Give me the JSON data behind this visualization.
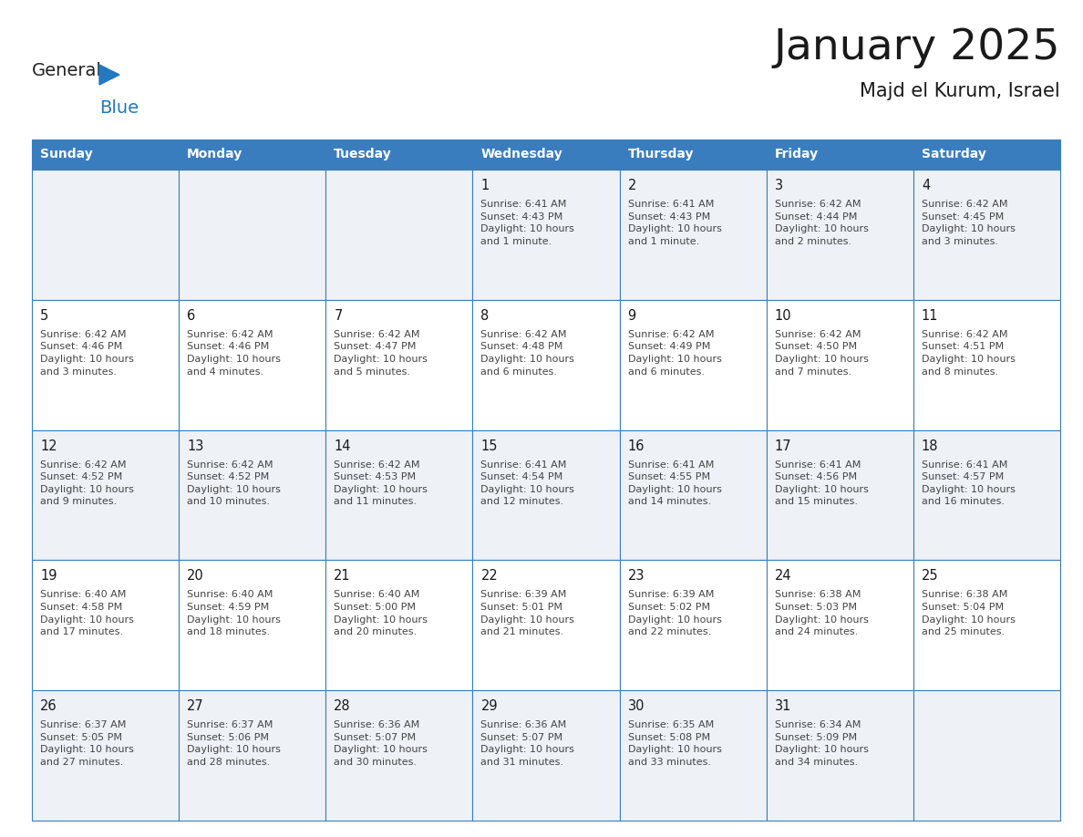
{
  "title": "January 2025",
  "subtitle": "Majd el Kurum, Israel",
  "days_of_week": [
    "Sunday",
    "Monday",
    "Tuesday",
    "Wednesday",
    "Thursday",
    "Friday",
    "Saturday"
  ],
  "header_bg": "#3a7dbf",
  "header_text": "#ffffff",
  "cell_bg_odd": "#eef2f7",
  "cell_bg_even": "#ffffff",
  "border_color": "#3a7dbf",
  "title_color": "#1a1a1a",
  "subtitle_color": "#1a1a1a",
  "day_number_color": "#1a1a1a",
  "cell_text_color": "#444444",
  "logo_general_color": "#222222",
  "logo_blue_color": "#2279c0",
  "calendar_data": [
    [
      {
        "day": "",
        "info": ""
      },
      {
        "day": "",
        "info": ""
      },
      {
        "day": "",
        "info": ""
      },
      {
        "day": "1",
        "info": "Sunrise: 6:41 AM\nSunset: 4:43 PM\nDaylight: 10 hours\nand 1 minute."
      },
      {
        "day": "2",
        "info": "Sunrise: 6:41 AM\nSunset: 4:43 PM\nDaylight: 10 hours\nand 1 minute."
      },
      {
        "day": "3",
        "info": "Sunrise: 6:42 AM\nSunset: 4:44 PM\nDaylight: 10 hours\nand 2 minutes."
      },
      {
        "day": "4",
        "info": "Sunrise: 6:42 AM\nSunset: 4:45 PM\nDaylight: 10 hours\nand 3 minutes."
      }
    ],
    [
      {
        "day": "5",
        "info": "Sunrise: 6:42 AM\nSunset: 4:46 PM\nDaylight: 10 hours\nand 3 minutes."
      },
      {
        "day": "6",
        "info": "Sunrise: 6:42 AM\nSunset: 4:46 PM\nDaylight: 10 hours\nand 4 minutes."
      },
      {
        "day": "7",
        "info": "Sunrise: 6:42 AM\nSunset: 4:47 PM\nDaylight: 10 hours\nand 5 minutes."
      },
      {
        "day": "8",
        "info": "Sunrise: 6:42 AM\nSunset: 4:48 PM\nDaylight: 10 hours\nand 6 minutes."
      },
      {
        "day": "9",
        "info": "Sunrise: 6:42 AM\nSunset: 4:49 PM\nDaylight: 10 hours\nand 6 minutes."
      },
      {
        "day": "10",
        "info": "Sunrise: 6:42 AM\nSunset: 4:50 PM\nDaylight: 10 hours\nand 7 minutes."
      },
      {
        "day": "11",
        "info": "Sunrise: 6:42 AM\nSunset: 4:51 PM\nDaylight: 10 hours\nand 8 minutes."
      }
    ],
    [
      {
        "day": "12",
        "info": "Sunrise: 6:42 AM\nSunset: 4:52 PM\nDaylight: 10 hours\nand 9 minutes."
      },
      {
        "day": "13",
        "info": "Sunrise: 6:42 AM\nSunset: 4:52 PM\nDaylight: 10 hours\nand 10 minutes."
      },
      {
        "day": "14",
        "info": "Sunrise: 6:42 AM\nSunset: 4:53 PM\nDaylight: 10 hours\nand 11 minutes."
      },
      {
        "day": "15",
        "info": "Sunrise: 6:41 AM\nSunset: 4:54 PM\nDaylight: 10 hours\nand 12 minutes."
      },
      {
        "day": "16",
        "info": "Sunrise: 6:41 AM\nSunset: 4:55 PM\nDaylight: 10 hours\nand 14 minutes."
      },
      {
        "day": "17",
        "info": "Sunrise: 6:41 AM\nSunset: 4:56 PM\nDaylight: 10 hours\nand 15 minutes."
      },
      {
        "day": "18",
        "info": "Sunrise: 6:41 AM\nSunset: 4:57 PM\nDaylight: 10 hours\nand 16 minutes."
      }
    ],
    [
      {
        "day": "19",
        "info": "Sunrise: 6:40 AM\nSunset: 4:58 PM\nDaylight: 10 hours\nand 17 minutes."
      },
      {
        "day": "20",
        "info": "Sunrise: 6:40 AM\nSunset: 4:59 PM\nDaylight: 10 hours\nand 18 minutes."
      },
      {
        "day": "21",
        "info": "Sunrise: 6:40 AM\nSunset: 5:00 PM\nDaylight: 10 hours\nand 20 minutes."
      },
      {
        "day": "22",
        "info": "Sunrise: 6:39 AM\nSunset: 5:01 PM\nDaylight: 10 hours\nand 21 minutes."
      },
      {
        "day": "23",
        "info": "Sunrise: 6:39 AM\nSunset: 5:02 PM\nDaylight: 10 hours\nand 22 minutes."
      },
      {
        "day": "24",
        "info": "Sunrise: 6:38 AM\nSunset: 5:03 PM\nDaylight: 10 hours\nand 24 minutes."
      },
      {
        "day": "25",
        "info": "Sunrise: 6:38 AM\nSunset: 5:04 PM\nDaylight: 10 hours\nand 25 minutes."
      }
    ],
    [
      {
        "day": "26",
        "info": "Sunrise: 6:37 AM\nSunset: 5:05 PM\nDaylight: 10 hours\nand 27 minutes."
      },
      {
        "day": "27",
        "info": "Sunrise: 6:37 AM\nSunset: 5:06 PM\nDaylight: 10 hours\nand 28 minutes."
      },
      {
        "day": "28",
        "info": "Sunrise: 6:36 AM\nSunset: 5:07 PM\nDaylight: 10 hours\nand 30 minutes."
      },
      {
        "day": "29",
        "info": "Sunrise: 6:36 AM\nSunset: 5:07 PM\nDaylight: 10 hours\nand 31 minutes."
      },
      {
        "day": "30",
        "info": "Sunrise: 6:35 AM\nSunset: 5:08 PM\nDaylight: 10 hours\nand 33 minutes."
      },
      {
        "day": "31",
        "info": "Sunrise: 6:34 AM\nSunset: 5:09 PM\nDaylight: 10 hours\nand 34 minutes."
      },
      {
        "day": "",
        "info": ""
      }
    ]
  ]
}
